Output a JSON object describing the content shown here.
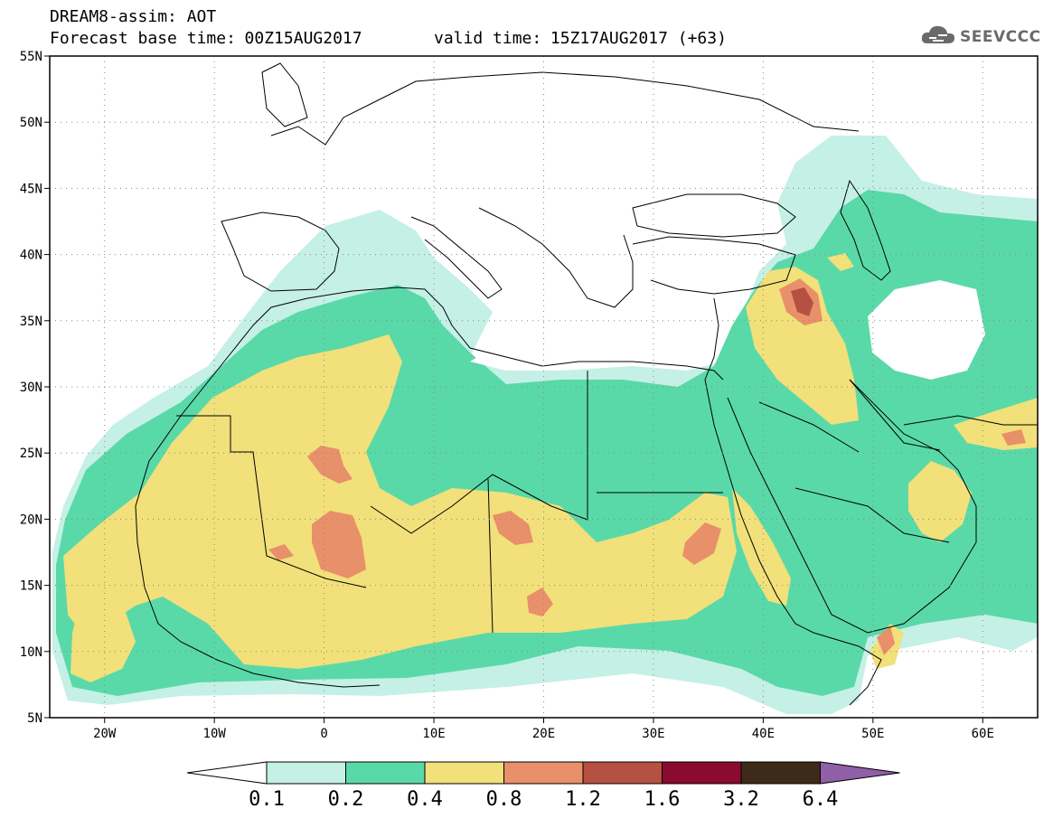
{
  "header": {
    "model_line": "DREAM8-assim: AOT",
    "base_label": "Forecast base time:",
    "base_value": "00Z15AUG2017",
    "valid_label": "valid time:",
    "valid_value": "15Z17AUG2017 (+63)"
  },
  "logo": {
    "text": "SEEVCCC",
    "icon": "cloud-logo-icon"
  },
  "map": {
    "latitude_labels": [
      "55N",
      "50N",
      "45N",
      "40N",
      "35N",
      "30N",
      "25N",
      "20N",
      "15N",
      "10N",
      "5N"
    ],
    "longitude_labels": [
      "20W",
      "10W",
      "0",
      "10E",
      "20E",
      "30E",
      "40E",
      "50E",
      "60E"
    ],
    "lat_range": [
      5,
      55
    ],
    "lon_range": [
      -25,
      65
    ],
    "gridlines": "dotted"
  },
  "colorbar": {
    "labels": [
      "0.1",
      "0.2",
      "0.4",
      "0.8",
      "1.2",
      "1.6",
      "3.2",
      "6.4"
    ],
    "colors": [
      "#c5f0e6",
      "#5ad9a8",
      "#f2e07a",
      "#e8906a",
      "#b65043",
      "#8b0a2f",
      "#3d2a18"
    ],
    "under_color": "#ffffff",
    "over_color": "#8f5fa8"
  },
  "palette": {
    "land": "#ffffff",
    "border": "#000000",
    "low": "#c5f0e6",
    "mid": "#5ad9a8",
    "high": "#f2e07a",
    "vhigh": "#e8906a",
    "extreme": "#b65043"
  }
}
